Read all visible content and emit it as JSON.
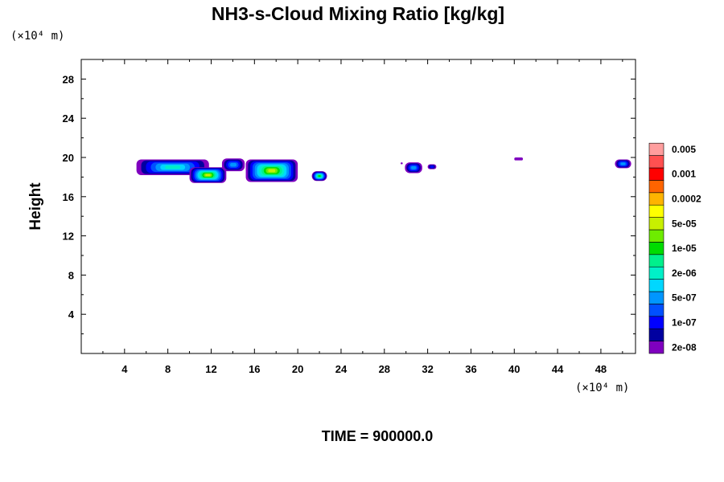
{
  "chart_data": {
    "type": "heatmap",
    "title": "NH3-s-Cloud Mixing Ratio [kg/kg]",
    "ylabel": "Height",
    "y_unit": "(×10⁴ m)",
    "x_unit": "(×10⁴ m)",
    "xlim": [
      0,
      51.2
    ],
    "ylim": [
      0,
      30
    ],
    "x_ticks": [
      4,
      8,
      12,
      16,
      20,
      24,
      28,
      32,
      36,
      40,
      44,
      48
    ],
    "y_ticks": [
      4,
      8,
      12,
      16,
      20,
      24,
      28
    ],
    "colorbar": {
      "colors": [
        "#7f00bf",
        "#0000a0",
        "#0000ff",
        "#0050ff",
        "#0096ff",
        "#00d7ff",
        "#00f0c8",
        "#00f08c",
        "#00dc00",
        "#6eec00",
        "#c8f000",
        "#ffff00",
        "#ffb400",
        "#ff6400",
        "#ff0000",
        "#ff5050",
        "#ff9e9e"
      ],
      "labels": [
        "2e-08",
        "1e-07",
        "5e-07",
        "2e-06",
        "1e-05",
        "5e-05",
        "0.0002",
        "0.001",
        "0.005"
      ]
    },
    "cloud_regions": [
      {
        "x_min": 5.1,
        "x_max": 11.8,
        "y_min": 18.2,
        "y_max": 19.8,
        "max_level": "2e-06"
      },
      {
        "x_min": 10.0,
        "x_max": 13.4,
        "y_min": 17.4,
        "y_max": 19.0,
        "max_level": "5e-05"
      },
      {
        "x_min": 13.0,
        "x_max": 15.1,
        "y_min": 18.6,
        "y_max": 19.9,
        "max_level": "5e-07"
      },
      {
        "x_min": 15.2,
        "x_max": 20.0,
        "y_min": 17.5,
        "y_max": 19.8,
        "max_level": "5e-05"
      },
      {
        "x_min": 21.3,
        "x_max": 22.7,
        "y_min": 17.6,
        "y_max": 18.6,
        "max_level": "1e-05"
      },
      {
        "x_min": 29.9,
        "x_max": 31.5,
        "y_min": 18.4,
        "y_max": 19.5,
        "max_level": "5e-07"
      },
      {
        "x_min": 32.0,
        "x_max": 32.8,
        "y_min": 18.8,
        "y_max": 19.3,
        "max_level": "1e-07"
      },
      {
        "x_min": 29.5,
        "x_max": 29.7,
        "y_min": 19.3,
        "y_max": 19.5,
        "max_level": "2e-08"
      },
      {
        "x_min": 40.0,
        "x_max": 40.8,
        "y_min": 19.7,
        "y_max": 20.0,
        "max_level": "2e-08"
      },
      {
        "x_min": 49.3,
        "x_max": 50.8,
        "y_min": 18.9,
        "y_max": 19.8,
        "max_level": "5e-07"
      }
    ]
  },
  "footer": {
    "time_label": "TIME = 900000.0"
  }
}
